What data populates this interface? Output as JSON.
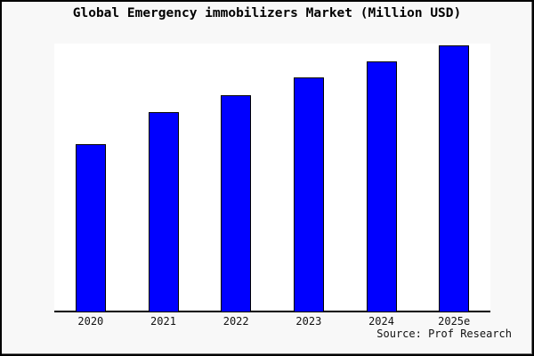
{
  "window": {
    "background_color": "#f8f8f8",
    "border_color": "#000000"
  },
  "chart_data": {
    "type": "bar",
    "title": "Global Emergency immobilizers Market (Million USD)",
    "categories": [
      "2020",
      "2021",
      "2022",
      "2023",
      "2024",
      "2025e"
    ],
    "relative_values": [
      0.63,
      0.75,
      0.813,
      0.88,
      0.94,
      1.0
    ],
    "value_scale": "relative bar heights (no y-axis tick labels shown in chart)",
    "xlabel": "",
    "ylabel": "",
    "ylim": [
      0,
      1
    ],
    "grid": false,
    "legend_position": "none",
    "bar_color": "#0000ff",
    "bar_border_color": "#000000",
    "axis_color": "#000000",
    "plot_background": "#ffffff"
  },
  "source": {
    "text": "Source: Prof Research"
  }
}
